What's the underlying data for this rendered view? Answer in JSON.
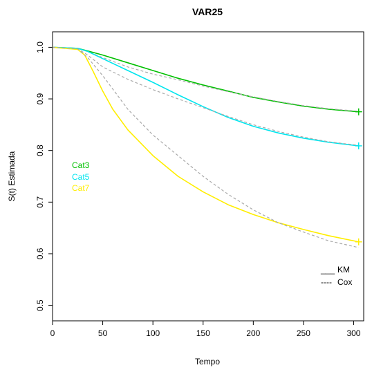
{
  "chart_data": {
    "type": "line",
    "title": "VAR25",
    "xlabel": "Tempo",
    "ylabel": "S(t) Estimada",
    "xlim": [
      0,
      310
    ],
    "ylim": [
      0.47,
      1.03
    ],
    "x_ticks": [
      0,
      50,
      100,
      150,
      200,
      250,
      300
    ],
    "y_ticks": [
      0.5,
      0.6,
      0.7,
      0.8,
      0.9,
      1.0
    ],
    "x_tick_labels": [
      "0",
      "50",
      "100",
      "150",
      "200",
      "250",
      "300"
    ],
    "y_tick_labels": [
      "0.5",
      "0.6",
      "0.7",
      "0.8",
      "0.9",
      "1.0"
    ],
    "grid": false,
    "series": [
      {
        "name": "Cat3",
        "color": "#00C000",
        "km": {
          "x": [
            0,
            25,
            35,
            50,
            75,
            100,
            125,
            150,
            175,
            200,
            225,
            250,
            275,
            305
          ],
          "y": [
            1.0,
            0.998,
            0.993,
            0.985,
            0.97,
            0.955,
            0.94,
            0.927,
            0.915,
            0.903,
            0.894,
            0.886,
            0.88,
            0.875
          ]
        },
        "cox": {
          "x": [
            0,
            25,
            35,
            50,
            75,
            100,
            125,
            150,
            175,
            200,
            225,
            250,
            275,
            305
          ],
          "y": [
            1.0,
            0.998,
            0.992,
            0.98,
            0.962,
            0.948,
            0.937,
            0.925,
            0.914,
            0.904,
            0.895,
            0.887,
            0.881,
            0.876
          ]
        },
        "end_marker": {
          "x": 305,
          "y": 0.875
        }
      },
      {
        "name": "Cat5",
        "color": "#00E5EE",
        "km": {
          "x": [
            0,
            25,
            35,
            50,
            75,
            100,
            125,
            150,
            175,
            200,
            225,
            250,
            275,
            305
          ],
          "y": [
            1.0,
            0.998,
            0.992,
            0.978,
            0.955,
            0.932,
            0.908,
            0.885,
            0.864,
            0.847,
            0.834,
            0.824,
            0.816,
            0.809
          ]
        },
        "cox": {
          "x": [
            0,
            25,
            35,
            50,
            75,
            100,
            125,
            150,
            175,
            200,
            225,
            250,
            275,
            305
          ],
          "y": [
            1.0,
            0.997,
            0.985,
            0.962,
            0.938,
            0.918,
            0.9,
            0.883,
            0.866,
            0.85,
            0.837,
            0.826,
            0.817,
            0.81
          ]
        },
        "end_marker": {
          "x": 305,
          "y": 0.809
        }
      },
      {
        "name": "Cat7",
        "color": "#FFEE00",
        "km": {
          "x": [
            0,
            25,
            32,
            40,
            50,
            60,
            75,
            100,
            125,
            150,
            175,
            200,
            225,
            250,
            275,
            305
          ],
          "y": [
            1.0,
            0.996,
            0.985,
            0.955,
            0.915,
            0.88,
            0.84,
            0.79,
            0.75,
            0.72,
            0.695,
            0.676,
            0.66,
            0.647,
            0.635,
            0.623
          ]
        },
        "cox": {
          "x": [
            0,
            25,
            35,
            50,
            75,
            100,
            125,
            150,
            175,
            200,
            225,
            250,
            275,
            305
          ],
          "y": [
            1.0,
            0.997,
            0.98,
            0.945,
            0.88,
            0.83,
            0.79,
            0.75,
            0.715,
            0.685,
            0.66,
            0.642,
            0.625,
            0.612
          ]
        },
        "end_marker": {
          "x": 305,
          "y": 0.623
        }
      }
    ],
    "cox_color": "#A9A9A9",
    "color_legend": {
      "position": "left",
      "entries": [
        "Cat3",
        "Cat5",
        "Cat7"
      ]
    },
    "line_legend": {
      "position": "bottom-right",
      "km_label": "KM",
      "cox_label": "Cox",
      "km_symbol": "___",
      "cox_symbol": "----"
    }
  }
}
